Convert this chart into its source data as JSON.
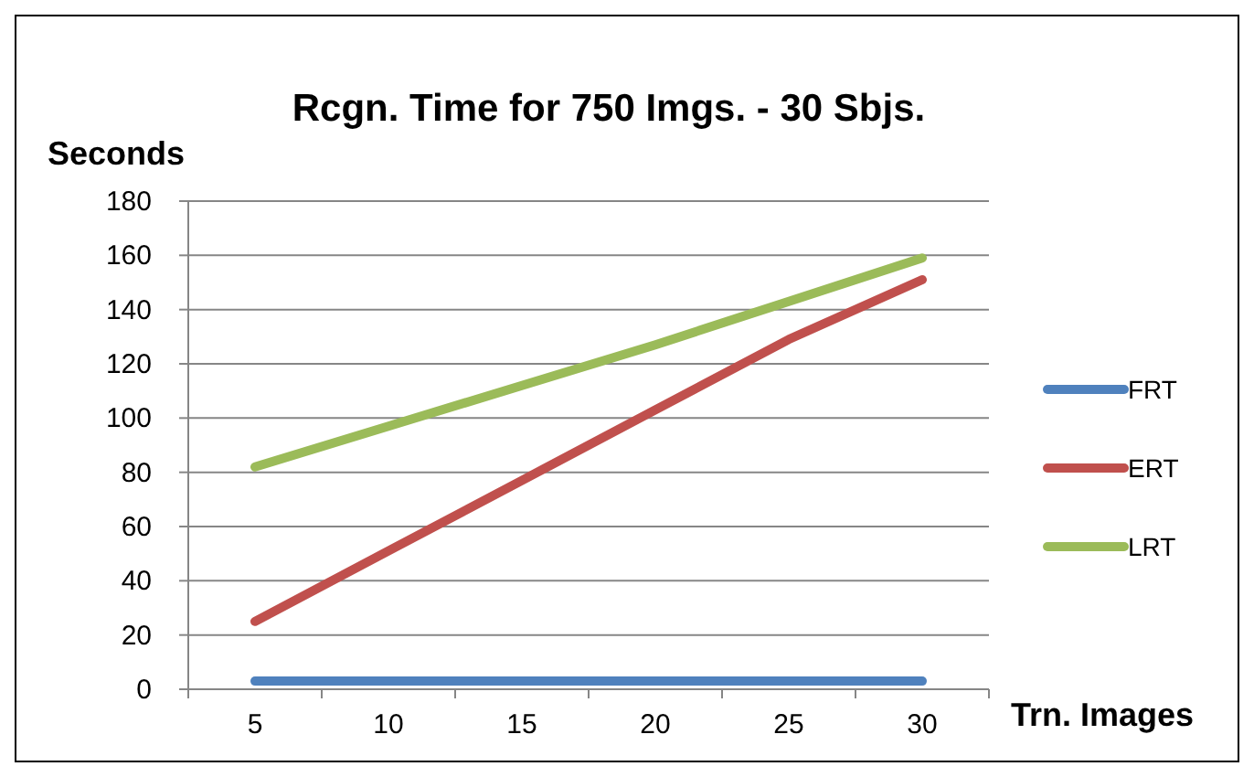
{
  "chart_data": {
    "type": "line",
    "title": "Rcgn. Time for 750 Imgs. - 30 Sbjs.",
    "ylabel": "Seconds",
    "xlabel": "Trn. Images",
    "categories": [
      "5",
      "10",
      "15",
      "20",
      "25",
      "30"
    ],
    "series": [
      {
        "name": "FRT",
        "color": "#4f81bd",
        "values": [
          3,
          3,
          3,
          3,
          3,
          3
        ]
      },
      {
        "name": "ERT",
        "color": "#c0504d",
        "values": [
          25,
          51,
          77,
          103,
          129,
          151
        ]
      },
      {
        "name": "LRT",
        "color": "#9bbb59",
        "values": [
          82,
          97,
          112,
          127,
          143,
          159
        ]
      }
    ],
    "ylim": [
      0,
      180
    ],
    "yticks": [
      0,
      20,
      40,
      60,
      80,
      100,
      120,
      140,
      160,
      180
    ],
    "grid": "y",
    "legend": "right",
    "marker": "none",
    "line_style": "solid"
  }
}
